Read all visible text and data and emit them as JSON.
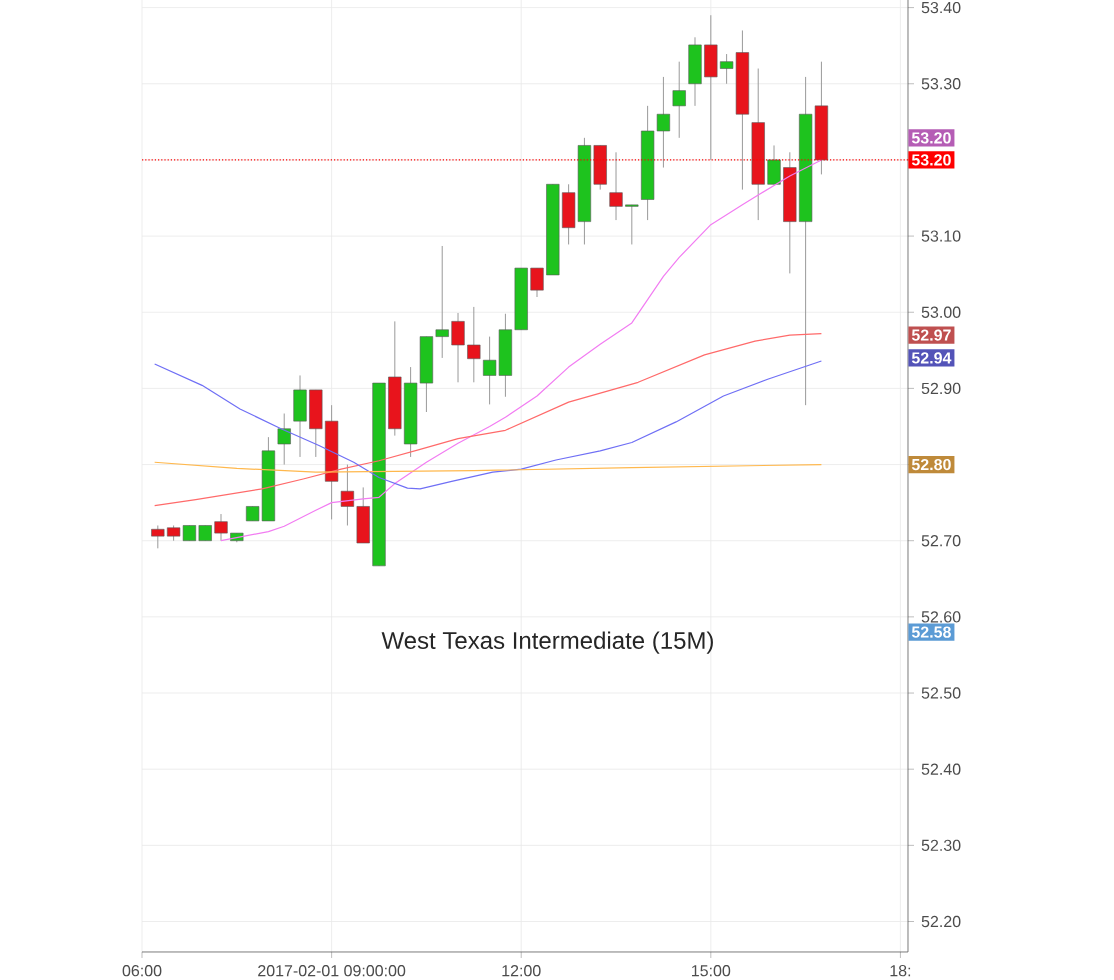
{
  "chart_data": {
    "type": "candlestick",
    "title": "West Texas Intermediate (15M)",
    "x": [
      6.25,
      6.5,
      6.75,
      7.0,
      7.25,
      7.5,
      7.75,
      8.0,
      8.25,
      8.5,
      8.75,
      9.0,
      9.25,
      9.5,
      9.75,
      10.0,
      10.25,
      10.5,
      10.75,
      11.0,
      11.25,
      11.5,
      11.75,
      12.0,
      12.25,
      12.5,
      12.75,
      13.0,
      13.25,
      13.5,
      13.75,
      14.0,
      14.25,
      14.5,
      14.75,
      15.0,
      15.25,
      15.5,
      15.75,
      16.0,
      16.25,
      16.5,
      16.75
    ],
    "ohlc": [
      [
        52.715,
        52.72,
        52.69,
        52.706
      ],
      [
        52.717,
        52.72,
        52.7,
        52.706
      ],
      [
        52.7,
        52.72,
        52.7,
        52.72
      ],
      [
        52.7,
        52.72,
        52.7,
        52.72
      ],
      [
        52.725,
        52.735,
        52.7,
        52.71
      ],
      [
        52.7,
        52.71,
        52.698,
        52.71
      ],
      [
        52.726,
        52.745,
        52.726,
        52.745
      ],
      [
        52.726,
        52.836,
        52.726,
        52.818
      ],
      [
        52.827,
        52.867,
        52.8,
        52.847
      ],
      [
        52.857,
        52.917,
        52.81,
        52.898
      ],
      [
        52.898,
        52.898,
        52.81,
        52.847
      ],
      [
        52.857,
        52.878,
        52.728,
        52.778
      ],
      [
        52.765,
        52.8,
        52.72,
        52.745
      ],
      [
        52.745,
        52.77,
        52.697,
        52.697
      ],
      [
        52.667,
        52.907,
        52.667,
        52.907
      ],
      [
        52.915,
        52.988,
        52.838,
        52.847
      ],
      [
        52.827,
        52.928,
        52.81,
        52.907
      ],
      [
        52.907,
        52.968,
        52.869,
        52.968
      ],
      [
        52.968,
        53.087,
        52.94,
        52.977
      ],
      [
        52.988,
        52.999,
        52.908,
        52.957
      ],
      [
        52.957,
        53.007,
        52.908,
        52.939
      ],
      [
        52.917,
        52.968,
        52.879,
        52.937
      ],
      [
        52.917,
        52.998,
        52.889,
        52.977
      ],
      [
        52.977,
        53.058,
        52.977,
        53.058
      ],
      [
        53.058,
        53.058,
        53.02,
        53.029
      ],
      [
        53.049,
        53.168,
        53.049,
        53.168
      ],
      [
        53.157,
        53.168,
        53.089,
        53.111
      ],
      [
        53.119,
        53.229,
        53.089,
        53.219
      ],
      [
        53.219,
        53.219,
        53.161,
        53.168
      ],
      [
        53.157,
        53.21,
        53.121,
        53.139
      ],
      [
        53.139,
        53.141,
        53.089,
        53.141
      ],
      [
        53.148,
        53.271,
        53.121,
        53.238
      ],
      [
        53.238,
        53.309,
        53.19,
        53.26
      ],
      [
        53.271,
        53.329,
        53.229,
        53.291
      ],
      [
        53.3,
        53.361,
        53.271,
        53.351
      ],
      [
        53.351,
        53.39,
        53.2,
        53.309
      ],
      [
        53.32,
        53.339,
        53.3,
        53.329
      ],
      [
        53.341,
        53.37,
        53.161,
        53.26
      ],
      [
        53.249,
        53.32,
        53.121,
        53.168
      ],
      [
        53.168,
        53.219,
        53.168,
        53.2
      ],
      [
        53.19,
        53.21,
        53.051,
        53.119
      ],
      [
        53.119,
        53.309,
        52.878,
        53.26
      ],
      [
        53.271,
        53.329,
        53.181,
        53.2
      ]
    ],
    "colors": [
      "#e8141c",
      "#e8141c",
      "#1ec31e",
      "#1ec31e",
      "#e8141c",
      "#1ec31e",
      "#1ec31e",
      "#1ec31e",
      "#1ec31e",
      "#1ec31e",
      "#e8141c",
      "#e8141c",
      "#e8141c",
      "#e8141c",
      "#1ec31e",
      "#e8141c",
      "#1ec31e",
      "#1ec31e",
      "#1ec31e",
      "#e8141c",
      "#e8141c",
      "#1ec31e",
      "#1ec31e",
      "#1ec31e",
      "#e8141c",
      "#1ec31e",
      "#e8141c",
      "#1ec31e",
      "#e8141c",
      "#e8141c",
      "#1ec31e",
      "#1ec31e",
      "#1ec31e",
      "#1ec31e",
      "#1ec31e",
      "#e8141c",
      "#1ec31e",
      "#e8141c",
      "#e8141c",
      "#1ec31e",
      "#e8141c",
      "#1ec31e",
      "#e8141c"
    ],
    "series": [
      {
        "type": "line",
        "color": "#f27cf2",
        "x": [
          7.25,
          8.0,
          8.25,
          8.75,
          9.0,
          9.5,
          9.75,
          10.0,
          10.5,
          11.0,
          11.5,
          11.75,
          12.25,
          12.75,
          13.25,
          13.75,
          14.25,
          14.5,
          15.0,
          15.5,
          15.75,
          16.25,
          16.75
        ],
        "values": [
          52.7,
          52.712,
          52.719,
          52.74,
          52.75,
          52.755,
          52.757,
          52.775,
          52.803,
          52.828,
          52.85,
          52.862,
          52.89,
          52.928,
          52.958,
          52.986,
          53.047,
          53.072,
          53.115,
          53.141,
          53.154,
          53.179,
          53.2
        ]
      },
      {
        "type": "line",
        "color": "#ff6a6a",
        "x": [
          6.2,
          6.85,
          7.9,
          8.55,
          9.15,
          9.75,
          10.4,
          11.0,
          11.75,
          12.75,
          13.85,
          14.9,
          15.7,
          16.25,
          16.75
        ],
        "values": [
          52.746,
          52.754,
          52.768,
          52.781,
          52.794,
          52.805,
          52.82,
          52.834,
          52.845,
          52.882,
          52.908,
          52.944,
          52.962,
          52.97,
          52.972
        ]
      },
      {
        "type": "line",
        "color": "#6f6ff5",
        "x": [
          6.2,
          6.95,
          7.55,
          8.2,
          8.8,
          9.35,
          9.75,
          10.2,
          10.4,
          10.9,
          11.55,
          12.0,
          12.55,
          13.25,
          13.75,
          14.45,
          15.2,
          15.9,
          16.75
        ],
        "values": [
          52.932,
          52.904,
          52.873,
          52.847,
          52.825,
          52.803,
          52.783,
          52.769,
          52.768,
          52.778,
          52.79,
          52.794,
          52.806,
          52.818,
          52.829,
          52.856,
          52.89,
          52.912,
          52.936
        ]
      },
      {
        "type": "line",
        "color": "#ffb84d",
        "x": [
          6.2,
          7.5,
          8.75,
          11.25,
          13.75,
          16.75
        ],
        "values": [
          52.803,
          52.795,
          52.79,
          52.792,
          52.796,
          52.8
        ]
      }
    ],
    "ref_lines": [
      {
        "axis": "y",
        "value": 53.2,
        "label": "53.20",
        "color": "#ff0000",
        "line_style": "dotted"
      }
    ],
    "annotations": [
      {
        "text": "53.20",
        "y": 53.2
      },
      {
        "text": "52.97",
        "y": 52.97
      },
      {
        "text": "52.94",
        "y": 52.94
      },
      {
        "text": "52.80",
        "y": 52.8
      },
      {
        "text": "52.58",
        "y": 52.58
      }
    ],
    "xlim": [
      6.0,
      18.12
    ],
    "ylim": [
      52.16,
      53.41
    ],
    "xticks": [
      {
        "value": 6,
        "label": "06:00"
      },
      {
        "value": 9,
        "label": "2017-02-01 09:00:00"
      },
      {
        "value": 12,
        "label": "12:00"
      },
      {
        "value": 15,
        "label": "15:00"
      },
      {
        "value": 18,
        "label": "18:"
      }
    ],
    "yticks": [
      {
        "value": 52.2,
        "label": "52.20"
      },
      {
        "value": 52.3,
        "label": "52.30"
      },
      {
        "value": 52.4,
        "label": "52.40"
      },
      {
        "value": 52.5,
        "label": "52.50"
      },
      {
        "value": 52.6,
        "label": "52.60"
      },
      {
        "value": 52.7,
        "label": "52.70"
      },
      {
        "value": 52.8,
        "label": null
      },
      {
        "value": 52.9,
        "label": "52.90"
      },
      {
        "value": 53.0,
        "label": "53.00"
      },
      {
        "value": 53.1,
        "label": "53.10"
      },
      {
        "value": 53.2,
        "label": null
      },
      {
        "value": 53.3,
        "label": "53.30"
      },
      {
        "value": 53.4,
        "label": "53.40"
      }
    ],
    "grid": true
  }
}
